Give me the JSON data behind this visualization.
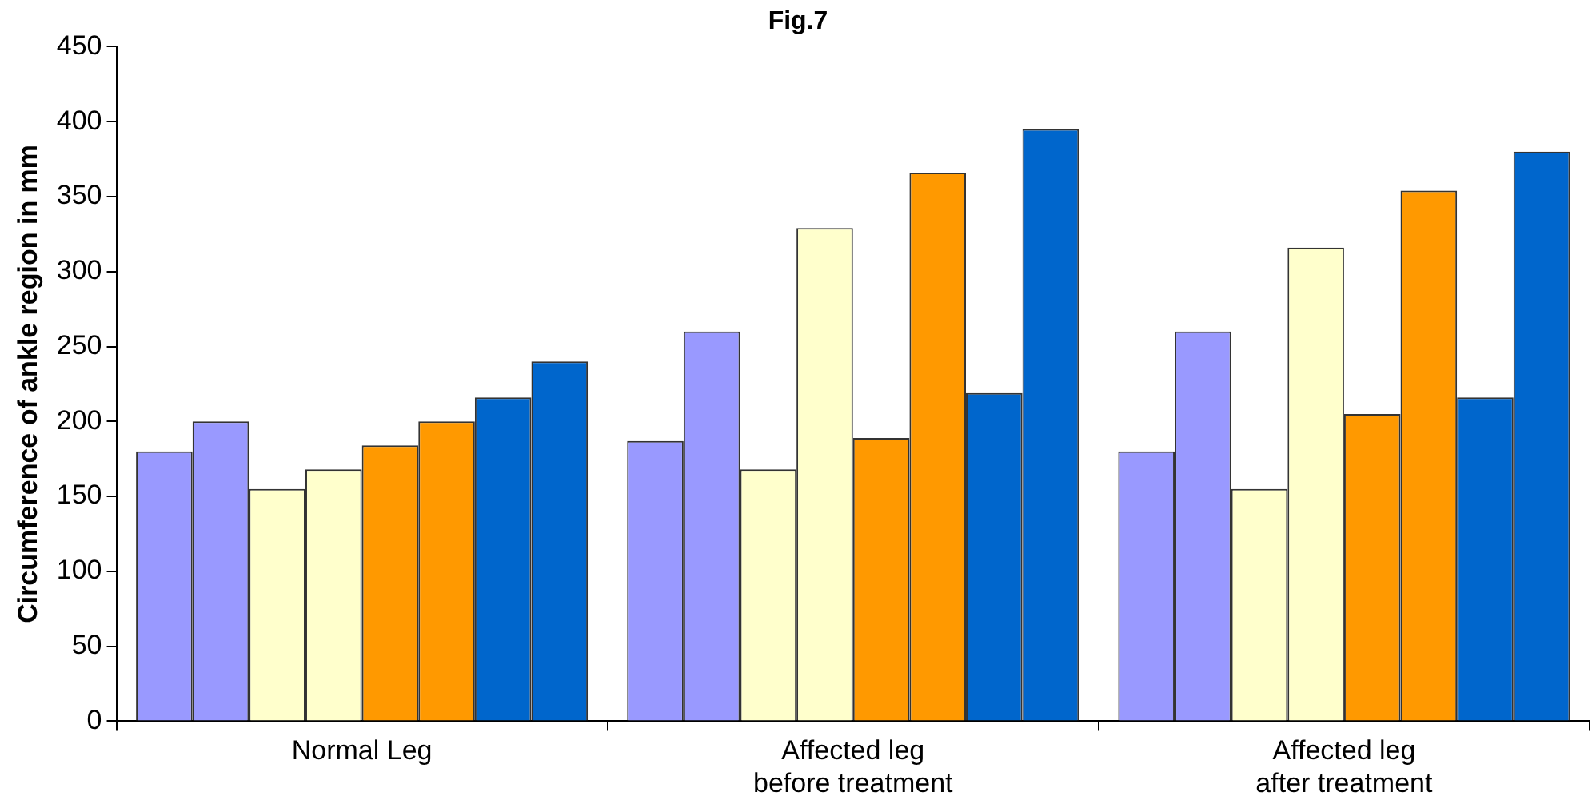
{
  "chart_data": {
    "type": "bar",
    "title": "Fig.7",
    "ylabel": "Circumference of ankle region in mm",
    "categories": [
      "Normal Leg",
      "Affected leg\nbefore treatment",
      "Affected leg\nafter treatment"
    ],
    "series": [
      {
        "color": "#9999ff",
        "values": [
          180,
          187,
          180
        ]
      },
      {
        "color": "#9999ff",
        "values": [
          200,
          260,
          260
        ]
      },
      {
        "color": "#ffffcc",
        "values": [
          155,
          168,
          155
        ]
      },
      {
        "color": "#ffffcc",
        "values": [
          168,
          329,
          316
        ]
      },
      {
        "color": "#ff9900",
        "values": [
          184,
          189,
          205
        ]
      },
      {
        "color": "#ff9900",
        "values": [
          200,
          366,
          354
        ]
      },
      {
        "color": "#0066cc",
        "values": [
          216,
          219,
          216
        ]
      },
      {
        "color": "#0066cc",
        "values": [
          240,
          395,
          380
        ]
      }
    ],
    "ylim": [
      0,
      450
    ],
    "yticks": [
      0,
      50,
      100,
      150,
      200,
      250,
      300,
      350,
      400,
      450
    ],
    "grid": false,
    "legend": false
  }
}
